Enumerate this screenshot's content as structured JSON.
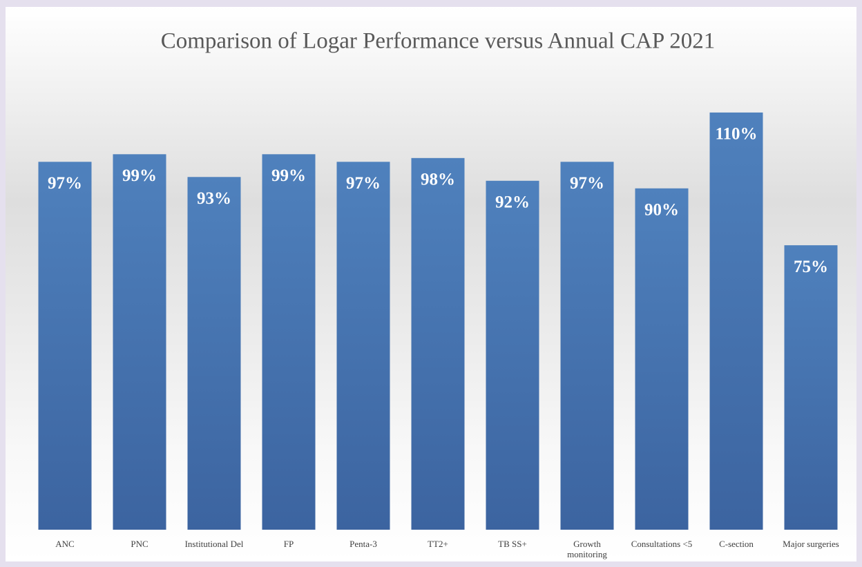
{
  "chart_data": {
    "type": "bar",
    "title": "Comparison of Logar Performance versus Annual CAP 2021",
    "categories": [
      "ANC",
      "PNC",
      "Institutional Del",
      "FP",
      "Penta-3",
      "TT2+",
      "TB SS+",
      "Growth monitoring",
      "Consultations <5",
      "C-section",
      "Major surgeries"
    ],
    "values": [
      97,
      99,
      93,
      99,
      97,
      98,
      92,
      97,
      90,
      110,
      75
    ],
    "value_labels": [
      "97%",
      "99%",
      "93%",
      "99%",
      "97%",
      "98%",
      "92%",
      "97%",
      "90%",
      "110%",
      "75%"
    ],
    "color": "#4f81bd",
    "ylim": [
      0,
      120
    ]
  }
}
